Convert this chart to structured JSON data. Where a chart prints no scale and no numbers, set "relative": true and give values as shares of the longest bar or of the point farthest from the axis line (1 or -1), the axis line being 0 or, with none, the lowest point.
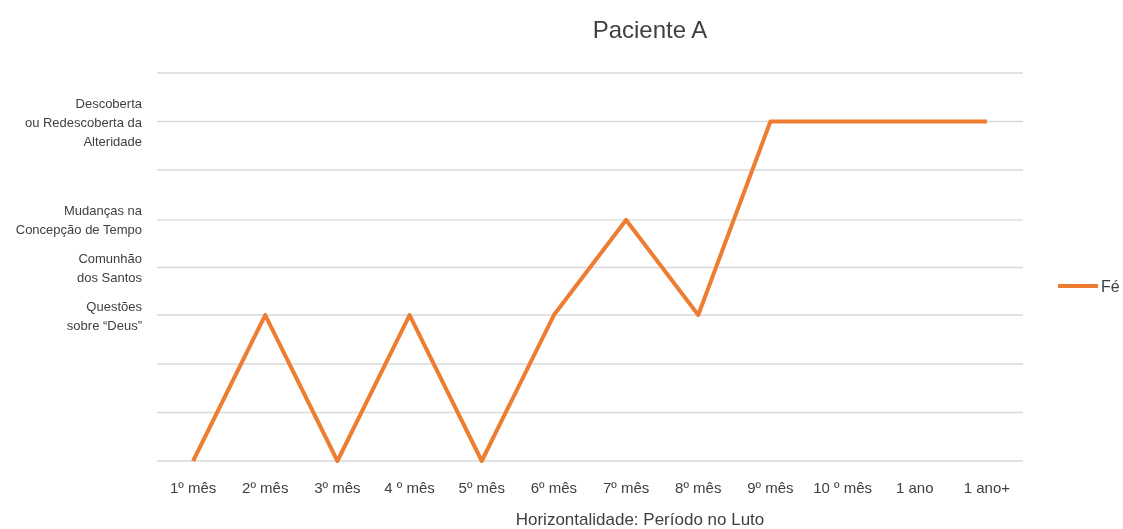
{
  "chart_data": {
    "type": "line",
    "title": "Paciente A",
    "xlabel": "Horizontalidade: Período no Luto",
    "categories": [
      "1º mês",
      "2º mês",
      "3º mês",
      "4 º mês",
      "5º mês",
      "6º mês",
      "7º mês",
      "8º mês",
      "9º mês",
      "10 º mês",
      "1 ano",
      "1 ano+"
    ],
    "series": [
      {
        "name": "Fé",
        "color": "#ed7d31",
        "values": [
          0,
          0.43,
          0,
          0.43,
          0,
          0.43,
          0.71,
          0.43,
          1,
          1,
          1,
          1
        ]
      }
    ],
    "relative": true,
    "ref_lines": [
      {
        "axis": "y",
        "value": 0.43,
        "label": "Questões\nsobre “Deus”"
      },
      {
        "axis": "y",
        "value": 0.57,
        "label": "Comunhão\ndos Santos"
      },
      {
        "axis": "y",
        "value": 0.71,
        "label": "Mudanças na\nConcepção de Tempo"
      },
      {
        "axis": "y",
        "value": 1,
        "label": "Descoberta\nou Redescoberta da\nAlteridade"
      }
    ],
    "grid": "y",
    "legend": "right",
    "marker": "none",
    "line_style": "solid"
  }
}
